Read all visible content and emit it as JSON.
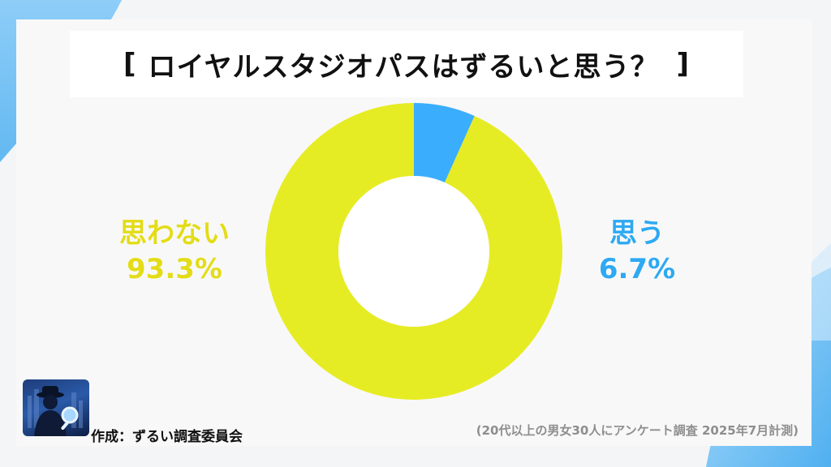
{
  "title": {
    "bracket_left": "[",
    "text": "ロイヤルスタジオパスはずるいと思う？",
    "bracket_right": "]"
  },
  "chart_data": {
    "type": "pie",
    "style": "donut",
    "title": "ロイヤルスタジオパスはずるいと思う？",
    "categories": [
      "思う",
      "思わない"
    ],
    "values": [
      6.7,
      93.3
    ],
    "value_labels": [
      "6.7%",
      "93.3%"
    ],
    "colors": [
      "#3aaefc",
      "#e6ec24"
    ],
    "start": "12 o'clock, clockwise"
  },
  "labels": {
    "no": {
      "name": "思わない",
      "value": "93.3%"
    },
    "yes": {
      "name": "思う",
      "value": "6.7%"
    }
  },
  "footer": {
    "credit": "作成：ずるい調査委員会",
    "source": "(20代以上の男女30人にアンケート調査 2025年7月計測)"
  },
  "colors": {
    "no": "#e6ec24",
    "yes": "#3aaefc",
    "accent_bg": "#5bb8f5"
  }
}
